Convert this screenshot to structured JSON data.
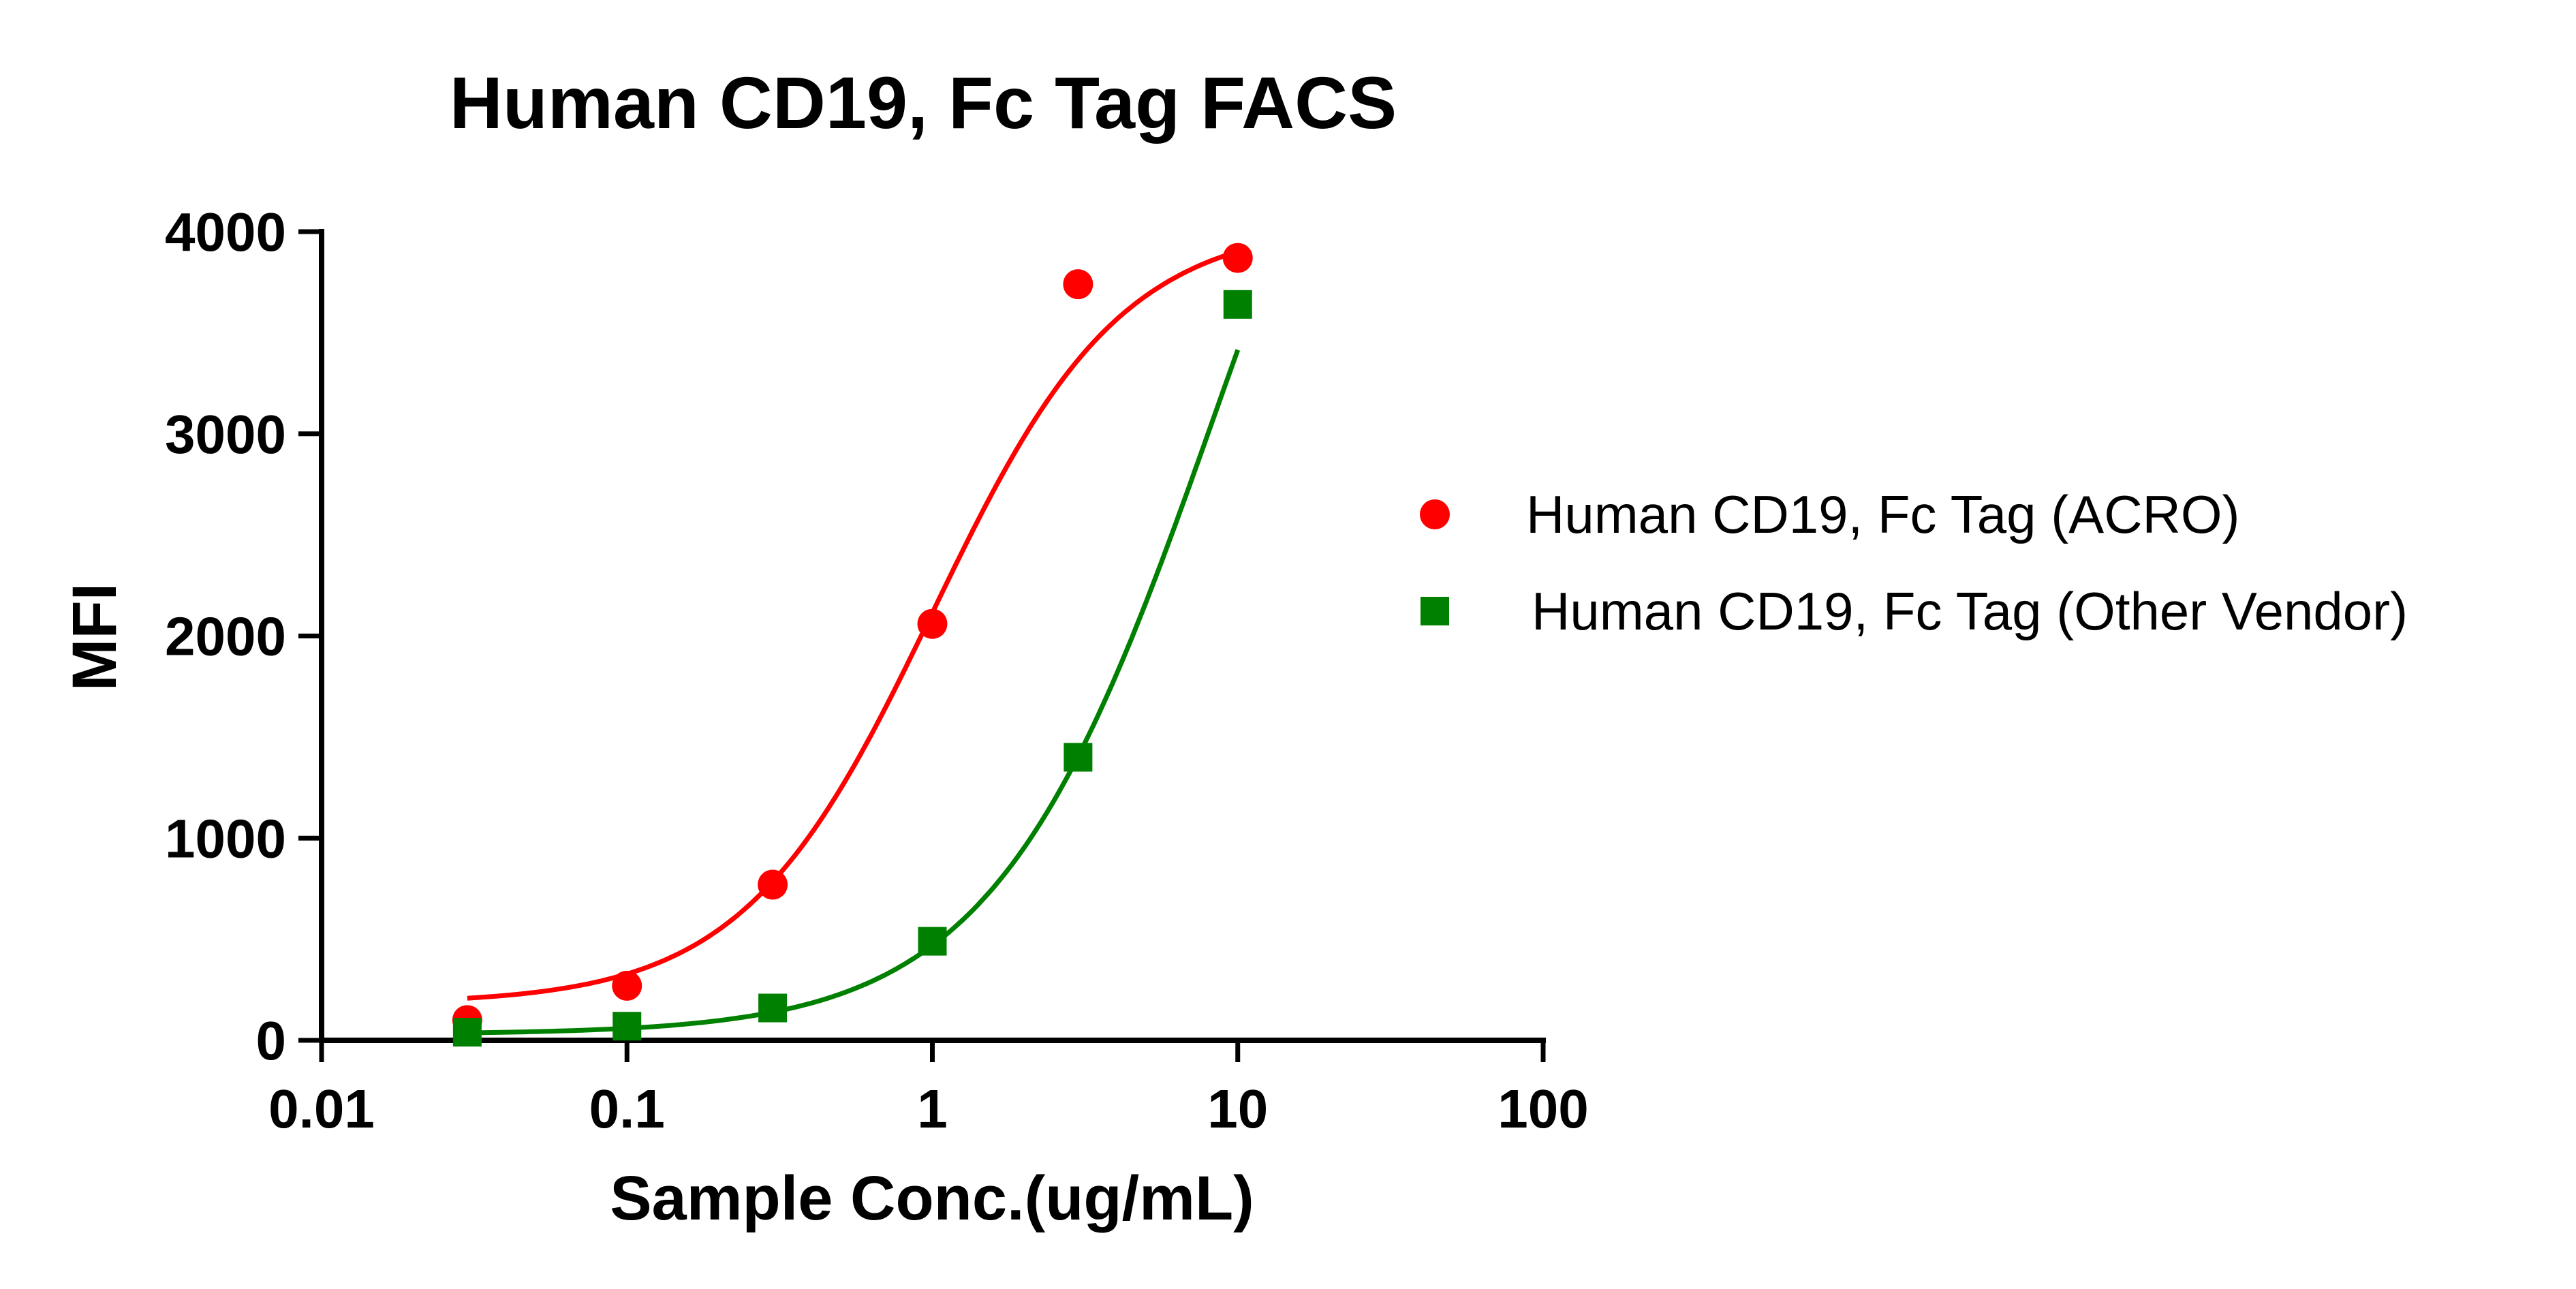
{
  "chart_data": {
    "type": "scatter",
    "title": "Human CD19, Fc Tag FACS",
    "xlabel": "Sample Conc.(ug/mL)",
    "ylabel": "MFI",
    "xscale": "log10",
    "xlim": [
      0.01,
      100
    ],
    "ylim": [
      0,
      4000
    ],
    "xticks": [
      {
        "value": 0.01,
        "label": "0.01"
      },
      {
        "value": 0.1,
        "label": "0.1"
      },
      {
        "value": 1,
        "label": "1"
      },
      {
        "value": 10,
        "label": "10"
      },
      {
        "value": 100,
        "label": "100"
      }
    ],
    "yticks": [
      {
        "value": 0,
        "label": "0"
      },
      {
        "value": 1000,
        "label": "1000"
      },
      {
        "value": 2000,
        "label": "2000"
      },
      {
        "value": 3000,
        "label": "3000"
      },
      {
        "value": 4000,
        "label": "4000"
      }
    ],
    "legend_position": "right",
    "series": [
      {
        "name": "Human CD19, Fc Tag (ACRO)",
        "marker": "circle",
        "color": "#ff0000",
        "x": [
          0.03,
          0.1,
          0.3,
          1,
          3,
          10
        ],
        "y": [
          100,
          270,
          770,
          2060,
          3740,
          3870
        ],
        "fit": {
          "model": "4PL",
          "bottom": 180,
          "top": 4050,
          "ec50": 1.0,
          "hill": 1.4
        }
      },
      {
        "name": "Human CD19, Fc Tag (Other Vendor)",
        "marker": "square",
        "color": "#008000",
        "x": [
          0.03,
          0.1,
          0.3,
          1,
          3,
          10
        ],
        "y": [
          40,
          70,
          160,
          490,
          1400,
          3640
        ],
        "fit": {
          "model": "4PL",
          "bottom": 30,
          "top": 6200,
          "ec50": 8.5,
          "hill": 1.2
        }
      }
    ]
  }
}
